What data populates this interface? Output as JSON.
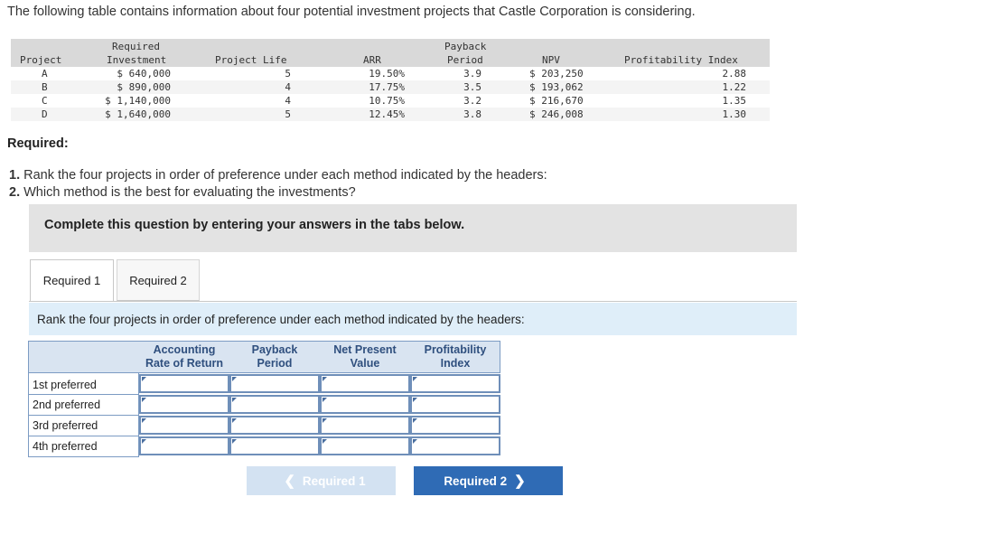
{
  "intro": "The following table contains information about four potential investment projects that Castle Corporation is considering.",
  "table": {
    "headers": {
      "project": "Project",
      "investment_line1": "Required",
      "investment_line2": "Investment",
      "life": "Project Life",
      "arr": "ARR",
      "payback_line1": "Payback",
      "payback_line2": "Period",
      "npv": "NPV",
      "pi": "Profitability Index"
    },
    "rows": [
      {
        "project": "A",
        "investment": "$ 640,000",
        "life": "5",
        "arr": "19.50%",
        "payback": "3.9",
        "npv": "$ 203,250",
        "pi": "2.88"
      },
      {
        "project": "B",
        "investment": "$ 890,000",
        "life": "4",
        "arr": "17.75%",
        "payback": "3.5",
        "npv": "$ 193,062",
        "pi": "1.22"
      },
      {
        "project": "C",
        "investment": "$ 1,140,000",
        "life": "4",
        "arr": "10.75%",
        "payback": "3.2",
        "npv": "$ 216,670",
        "pi": "1.35"
      },
      {
        "project": "D",
        "investment": "$ 1,640,000",
        "life": "5",
        "arr": "12.45%",
        "payback": "3.8",
        "npv": "$ 246,008",
        "pi": "1.30"
      }
    ]
  },
  "required_title": "Required:",
  "questions": [
    {
      "num": "1.",
      "text": " Rank the four projects in order of preference under each method indicated by the headers:"
    },
    {
      "num": "2.",
      "text": " Which method is the best for evaluating the investments?"
    }
  ],
  "complete_banner": "Complete this question by entering your answers in the tabs below.",
  "tabs": [
    {
      "label": "Required 1",
      "active": true
    },
    {
      "label": "Required 2",
      "active": false
    }
  ],
  "instruction": "Rank the four projects in order of preference under each method indicated by the headers:",
  "answer_grid": {
    "columns": [
      {
        "line1": "Accounting",
        "line2": "Rate of Return"
      },
      {
        "line1": "Payback",
        "line2": "Period"
      },
      {
        "line1": "Net Present",
        "line2": "Value"
      },
      {
        "line1": "Profitability",
        "line2": "Index"
      }
    ],
    "rows": [
      "1st preferred",
      "2nd preferred",
      "3rd preferred",
      "4th preferred"
    ]
  },
  "nav": {
    "prev_label": "Required 1",
    "next_label": "Required 2",
    "prev_icon": "chevron-left-icon",
    "next_icon": "chevron-right-icon"
  },
  "colors": {
    "next_button": "#2f6bb5",
    "prev_button_disabled": "#d3e2f2",
    "header_text": "#2f4f7e",
    "instruction_bg": "#dfeef9"
  }
}
